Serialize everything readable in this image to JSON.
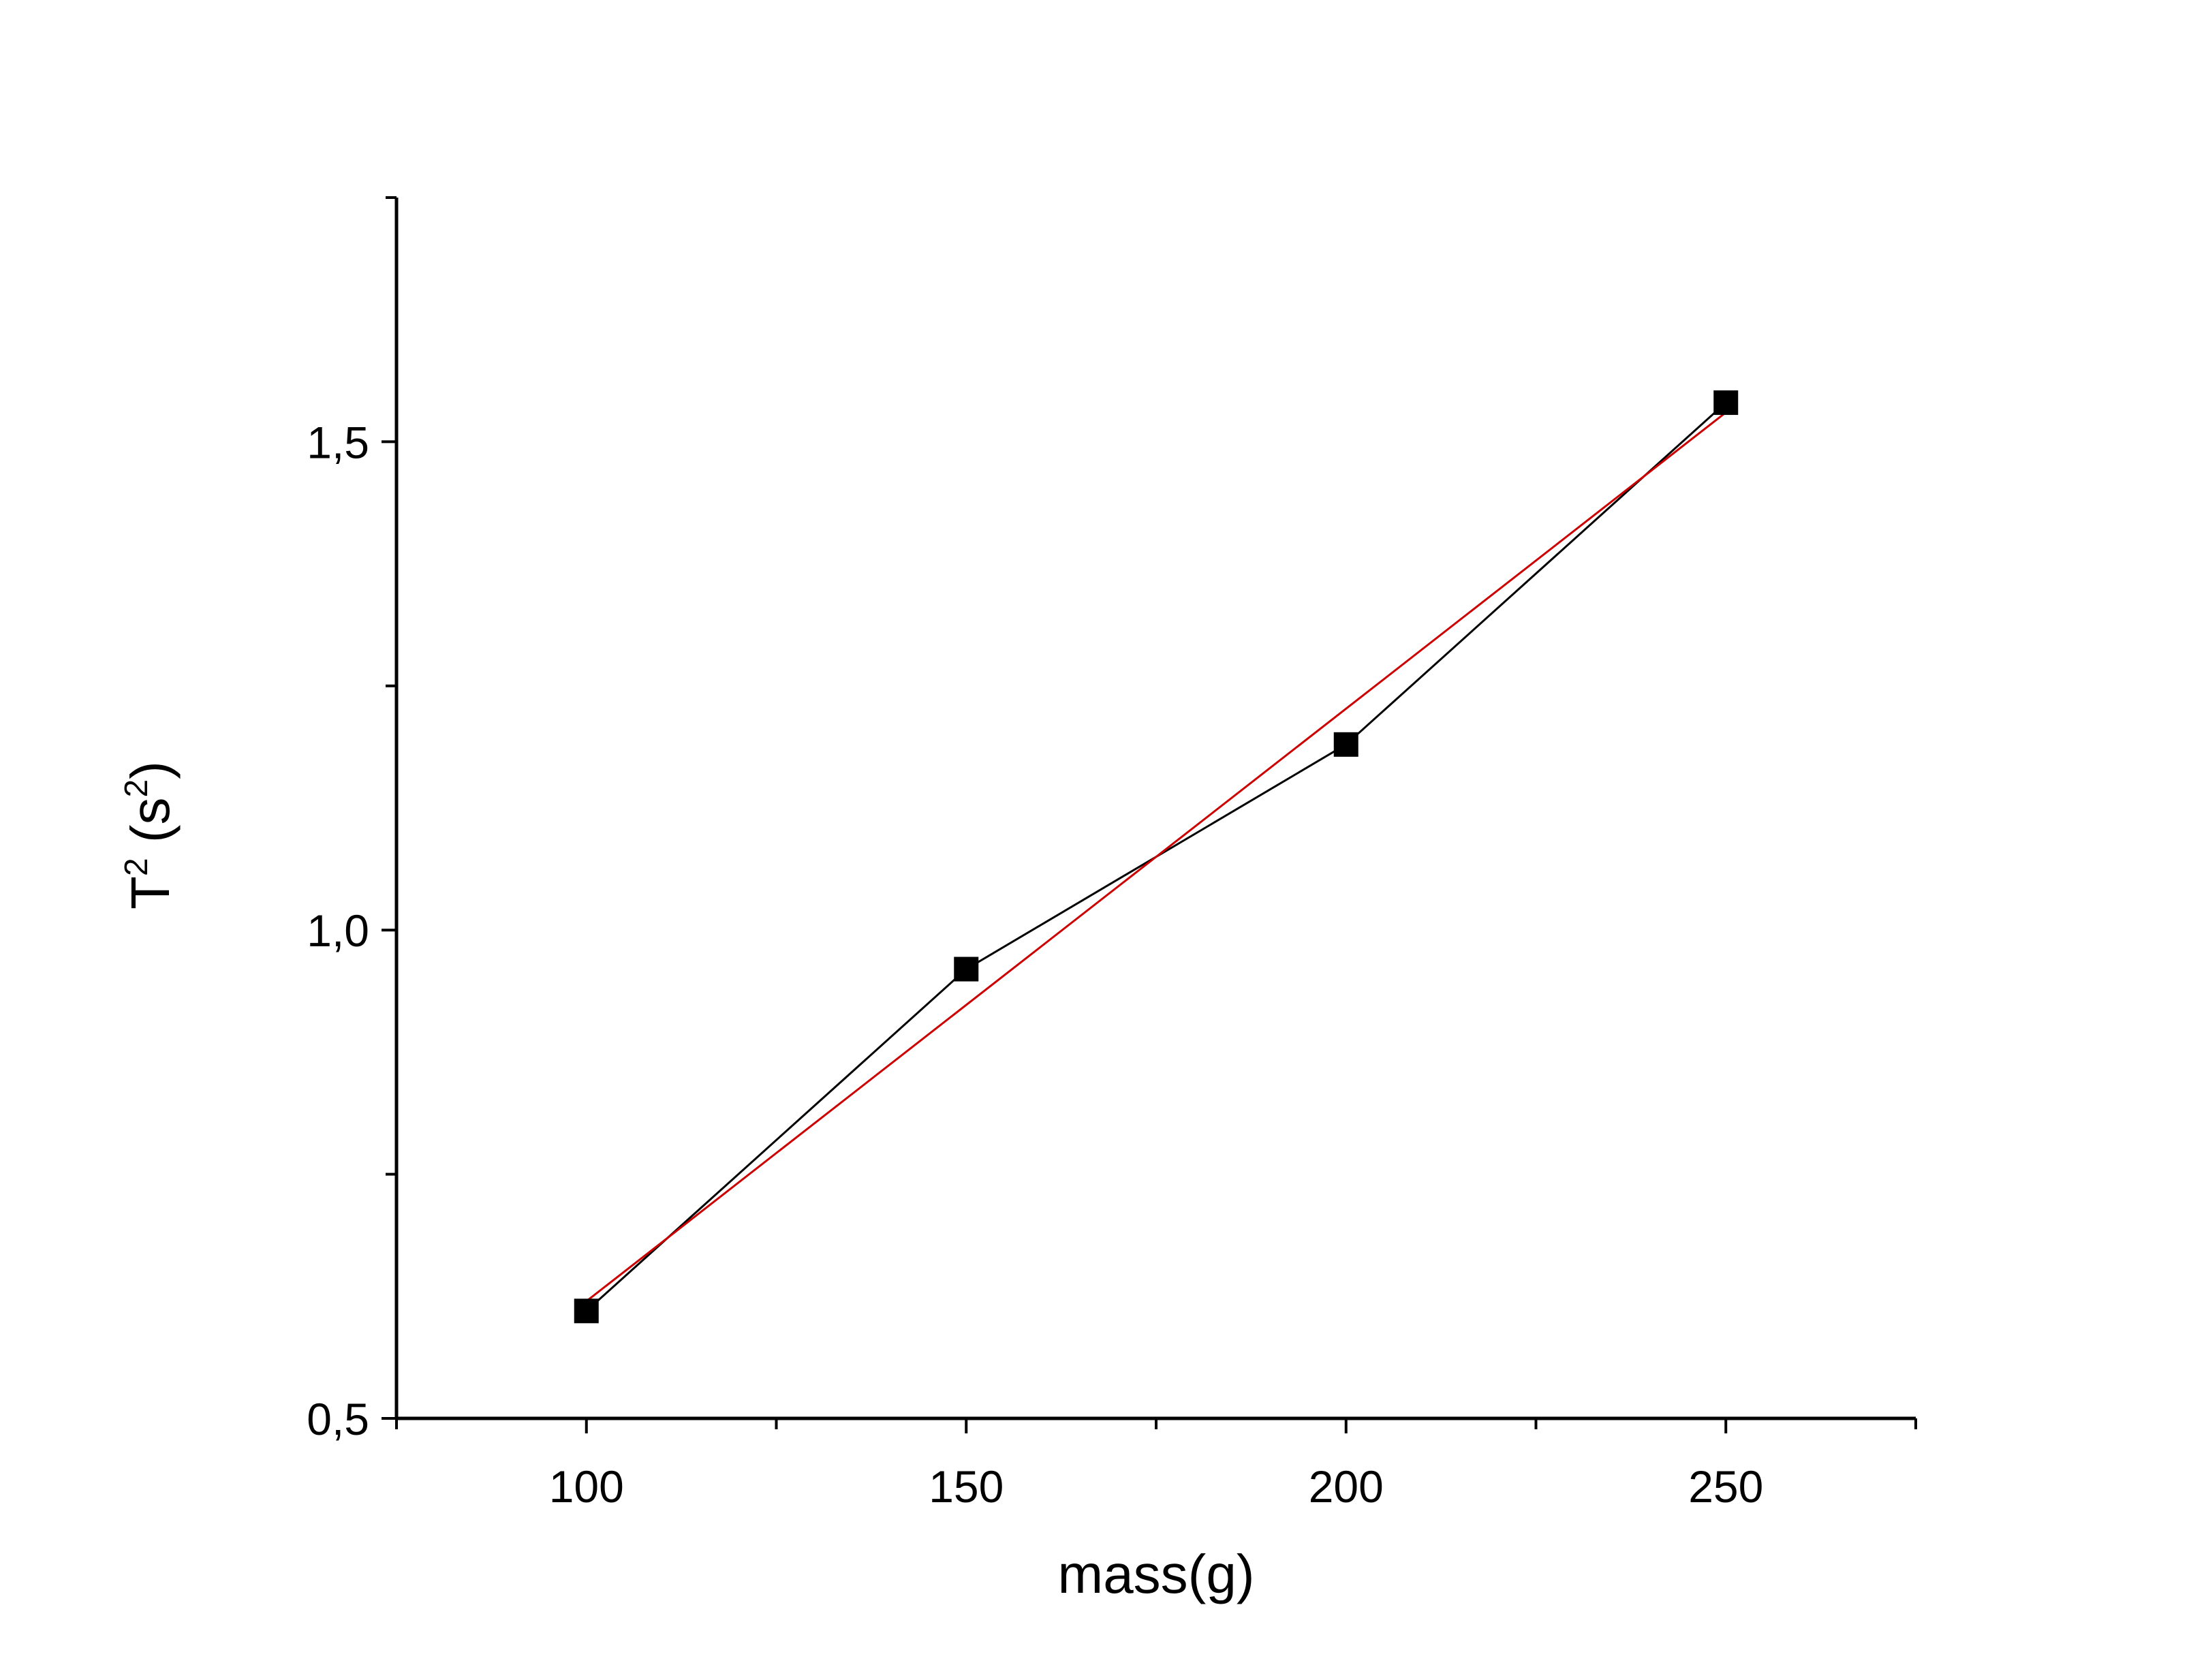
{
  "chart_data": {
    "type": "line",
    "xlabel": "mass(g)",
    "ylabel": {
      "base": "T",
      "base_sup": "2",
      "unit_open": " (s",
      "unit_sup": "2",
      "unit_close": ")"
    },
    "xlim": [
      75,
      275
    ],
    "ylim": [
      0.5,
      1.75
    ],
    "x_ticks": [
      {
        "value": 100,
        "label": "100"
      },
      {
        "value": 150,
        "label": "150"
      },
      {
        "value": 200,
        "label": "200"
      },
      {
        "value": 250,
        "label": "250"
      }
    ],
    "x_minor_ticks": [
      75,
      125,
      175,
      225,
      275
    ],
    "y_ticks": [
      {
        "value": 0.5,
        "label": "0,5"
      },
      {
        "value": 1.0,
        "label": "1,0"
      },
      {
        "value": 1.5,
        "label": "1,5"
      }
    ],
    "y_minor_ticks": [
      0.75,
      1.25,
      1.75
    ],
    "series": [
      {
        "kind": "measured",
        "x": [
          100,
          150,
          200,
          250
        ],
        "y": [
          0.61,
          0.96,
          1.19,
          1.54
        ],
        "color": "#000000",
        "marker": "square"
      },
      {
        "kind": "fit",
        "x": [
          100,
          250
        ],
        "y": [
          0.62,
          1.53
        ],
        "color": "#cc0000",
        "marker": "none"
      }
    ],
    "grid": false,
    "legend": "none"
  }
}
